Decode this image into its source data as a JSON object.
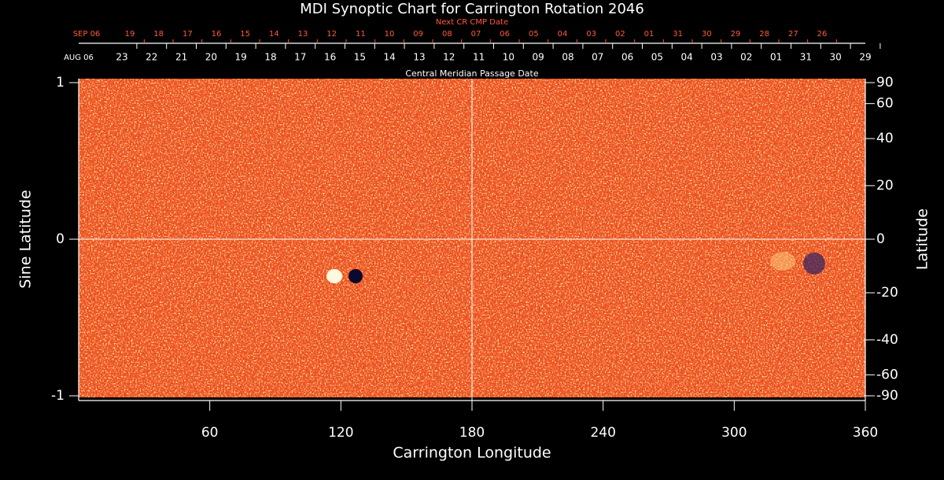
{
  "chart_data": {
    "type": "synoptic-map",
    "title": "MDI Synoptic Chart for Carrington Rotation 2046",
    "xlabel": "Carrington Longitude",
    "xlim": [
      0,
      360
    ],
    "xticks": [
      60,
      120,
      180,
      240,
      300,
      360
    ],
    "ylabel": "Sine Latitude",
    "ylim": [
      -1,
      1
    ],
    "yticks": [
      -1,
      0,
      1
    ],
    "y2label": "Latitude",
    "y2lim": [
      -90,
      90
    ],
    "y2scale": "sine",
    "y2ticks": [
      90,
      60,
      40,
      20,
      0,
      -20,
      -40,
      -60,
      -90
    ],
    "cmp_label": "Central Meridian Passage Date",
    "cmp_dates": [
      "AUG 06",
      "23",
      "22",
      "21",
      "20",
      "19",
      "18",
      "17",
      "16",
      "15",
      "14",
      "13",
      "12",
      "11",
      "10",
      "09",
      "08",
      "07",
      "06",
      "05",
      "04",
      "03",
      "02",
      "01",
      "31",
      "30",
      "29"
    ],
    "next_cr_label": "Next CR CMP Date",
    "next_cr_dates": [
      "SEP 06",
      "19",
      "18",
      "17",
      "16",
      "15",
      "14",
      "13",
      "12",
      "11",
      "10",
      "09",
      "08",
      "07",
      "06",
      "05",
      "04",
      "03",
      "02",
      "01",
      "31",
      "30",
      "29",
      "28",
      "27",
      "26"
    ],
    "grid": true
  }
}
